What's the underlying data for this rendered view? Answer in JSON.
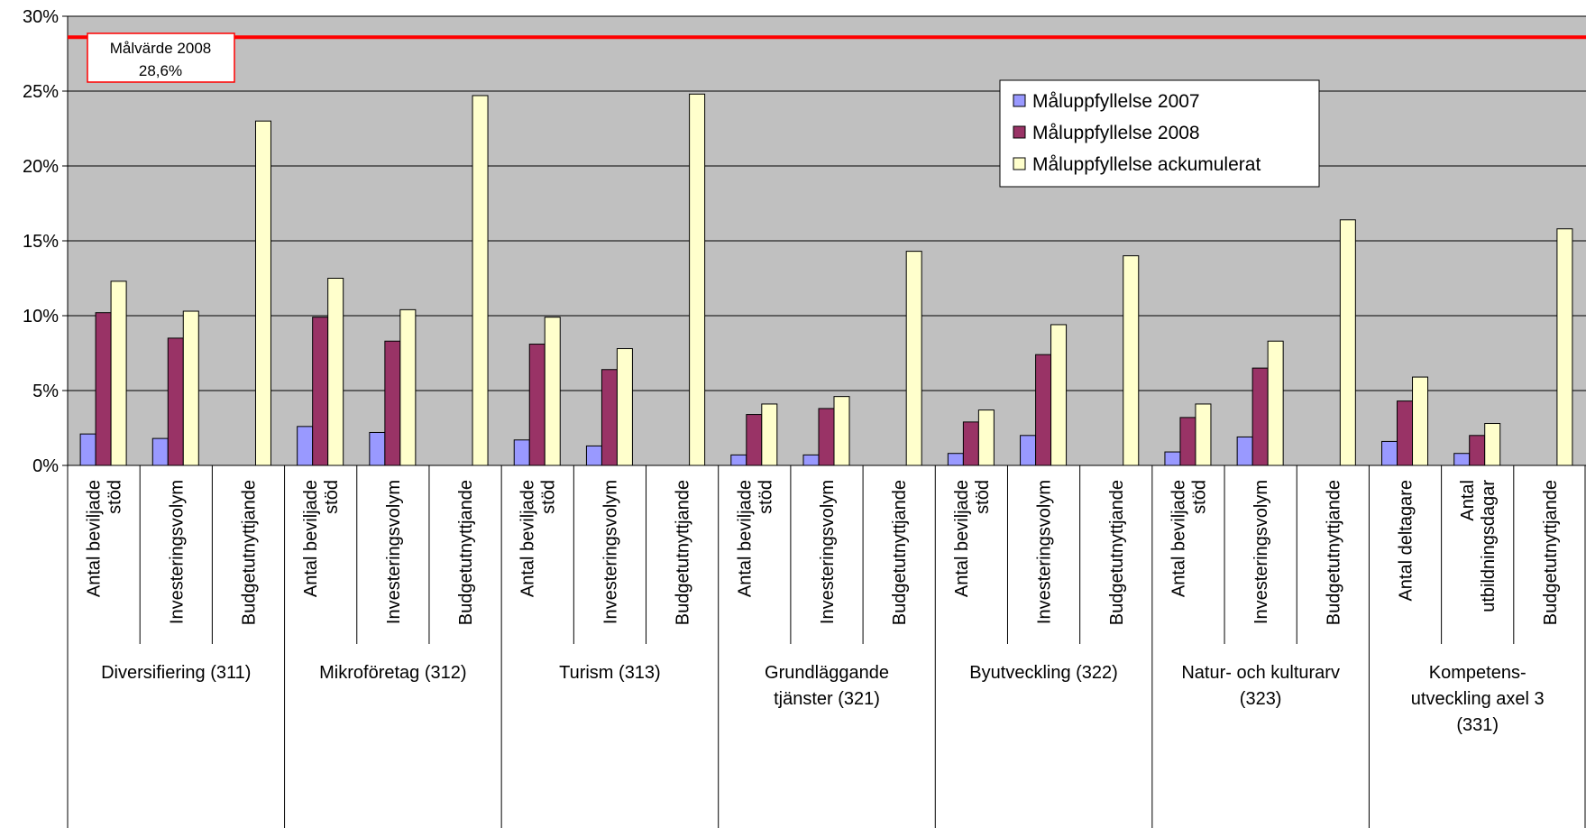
{
  "chart_data": {
    "type": "bar",
    "ylim": [
      0,
      30
    ],
    "yticks": [
      "0%",
      "5%",
      "10%",
      "15%",
      "20%",
      "25%",
      "30%"
    ],
    "yticks_values": [
      0,
      5,
      10,
      15,
      20,
      25,
      30
    ],
    "grid": true,
    "legend_position": "top-right",
    "colors": {
      "plot_bg": "#c0c0c0",
      "target_line": "#ff0000"
    },
    "target": {
      "value": 28.6,
      "label_line1": "Målvärde 2008",
      "label_line2": "28,6%"
    },
    "groups": [
      {
        "label_lines": [
          "Diversifiering (311)"
        ],
        "categories": [
          [
            "Antal beviljade",
            "stöd"
          ],
          [
            "Investeringsvolym"
          ],
          [
            "Budgetutnyttjande"
          ]
        ]
      },
      {
        "label_lines": [
          "Mikroföretag (312)"
        ],
        "categories": [
          [
            "Antal beviljade",
            "stöd"
          ],
          [
            "Investeringsvolym"
          ],
          [
            "Budgetutnyttjande"
          ]
        ]
      },
      {
        "label_lines": [
          "Turism (313)"
        ],
        "categories": [
          [
            "Antal beviljade",
            "stöd"
          ],
          [
            "Investeringsvolym"
          ],
          [
            "Budgetutnyttjande"
          ]
        ]
      },
      {
        "label_lines": [
          "Grundläggande",
          "tjänster (321)"
        ],
        "categories": [
          [
            "Antal beviljade",
            "stöd"
          ],
          [
            "Investeringsvolym"
          ],
          [
            "Budgetutnyttjande"
          ]
        ]
      },
      {
        "label_lines": [
          "Byutveckling (322)"
        ],
        "categories": [
          [
            "Antal beviljade",
            "stöd"
          ],
          [
            "Investeringsvolym"
          ],
          [
            "Budgetutnyttjande"
          ]
        ]
      },
      {
        "label_lines": [
          "Natur- och kulturarv",
          "(323)"
        ],
        "categories": [
          [
            "Antal beviljade",
            "stöd"
          ],
          [
            "Investeringsvolym"
          ],
          [
            "Budgetutnyttjande"
          ]
        ]
      },
      {
        "label_lines": [
          "Kompetens-",
          "utveckling axel 3",
          "(331)"
        ],
        "categories": [
          [
            "Antal deltagare"
          ],
          [
            "Antal",
            "utbildningsdagar"
          ],
          [
            "Budgetutnyttjande"
          ]
        ]
      }
    ],
    "series": [
      {
        "name": "Måluppfyllelse 2007",
        "color": "#9999ff",
        "values": [
          2.1,
          1.8,
          0,
          2.6,
          2.2,
          0,
          1.7,
          1.3,
          0,
          0.7,
          0.7,
          0,
          0.8,
          2.0,
          0,
          0.9,
          1.9,
          0,
          1.6,
          0.8,
          0
        ]
      },
      {
        "name": "Måluppfyllelse 2008",
        "color": "#993366",
        "values": [
          10.2,
          8.5,
          0,
          9.9,
          8.3,
          0,
          8.1,
          6.4,
          0,
          3.4,
          3.8,
          0,
          2.9,
          7.4,
          0,
          3.2,
          6.5,
          0,
          4.3,
          2.0,
          0
        ]
      },
      {
        "name": "Måluppfyllelse ackumulerat",
        "color": "#ffffcc",
        "values": [
          12.3,
          10.3,
          23.0,
          12.5,
          10.4,
          24.7,
          9.9,
          7.8,
          24.8,
          4.1,
          4.6,
          14.3,
          3.7,
          9.4,
          14.0,
          4.1,
          8.3,
          16.4,
          5.9,
          2.8,
          15.8
        ]
      }
    ]
  }
}
